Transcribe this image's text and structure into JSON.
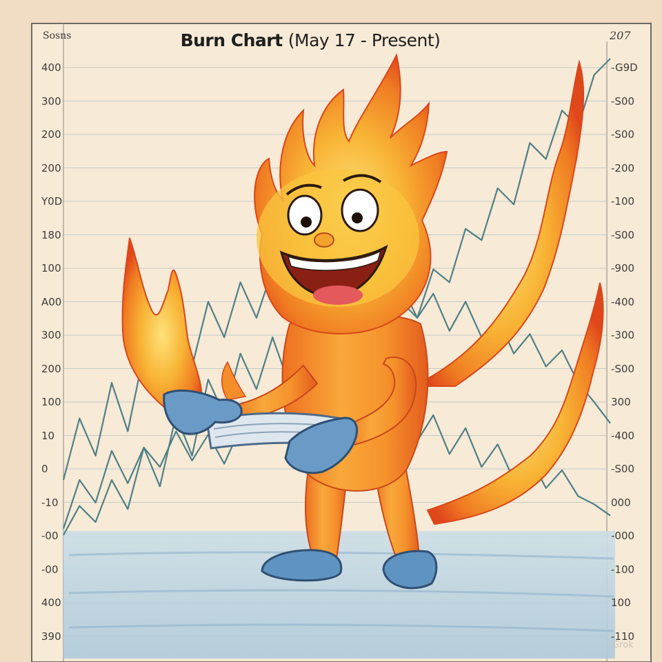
{
  "corner_left": "Sosns",
  "corner_right": "207",
  "chart_data": {
    "type": "line",
    "title_bold": "Burn Chart",
    "title_light": "(May 17 - Present)",
    "left_ticks": [
      "400",
      "300",
      "200",
      "200",
      "Y0D",
      "180",
      "100",
      "A00",
      "300",
      "200",
      "100",
      "10",
      "0",
      "-10",
      "-00",
      "-00",
      "400",
      "390"
    ],
    "right_ticks": [
      "-G9D",
      "-S00",
      "-S00",
      "-200",
      "-100",
      "-S00",
      "-900",
      "-400",
      "-300",
      "-S00",
      "300",
      "-400",
      "-S00",
      "000",
      "-000",
      "-100",
      "100",
      "-110"
    ],
    "grid": true,
    "series": [
      {
        "values": [
          10,
          40,
          26,
          58,
          38,
          60,
          48,
          70,
          52,
          68,
          50,
          72,
          62,
          80,
          68,
          95,
          86,
          110,
          98,
          128,
          118,
          150,
          140,
          170,
          162,
          195,
          188,
          220,
          210,
          248,
          238,
          268,
          258,
          290,
          300
        ]
      },
      {
        "values": [
          40,
          78,
          55,
          100,
          70,
          118,
          90,
          135,
          110,
          150,
          128,
          162,
          140,
          170,
          150,
          180,
          160,
          185,
          168,
          176,
          150,
          160,
          140,
          155,
          132,
          150,
          128,
          140,
          118,
          130,
          110,
          120,
          100,
          88,
          75
        ]
      },
      {
        "values": [
          6,
          24,
          14,
          40,
          22,
          60,
          36,
          80,
          55,
          102,
          80,
          118,
          96,
          128,
          100,
          110,
          88,
          105,
          78,
          96,
          70,
          90,
          64,
          80,
          56,
          72,
          48,
          62,
          40,
          54,
          35,
          46,
          30,
          25,
          18
        ]
      }
    ]
  },
  "colors": {
    "paper": "#f7ead6",
    "grid": "#9fb3bf",
    "line": "#4e7f86",
    "flame_outer": "#e8491c",
    "flame_mid": "#f48a22",
    "flame_inner": "#f8c13a",
    "glove": "#6a9bc6",
    "floor": "#b7d2e2"
  },
  "illustration": {
    "character": "flame-mascot",
    "held_item": "book-icon"
  },
  "watermark": "Grok"
}
